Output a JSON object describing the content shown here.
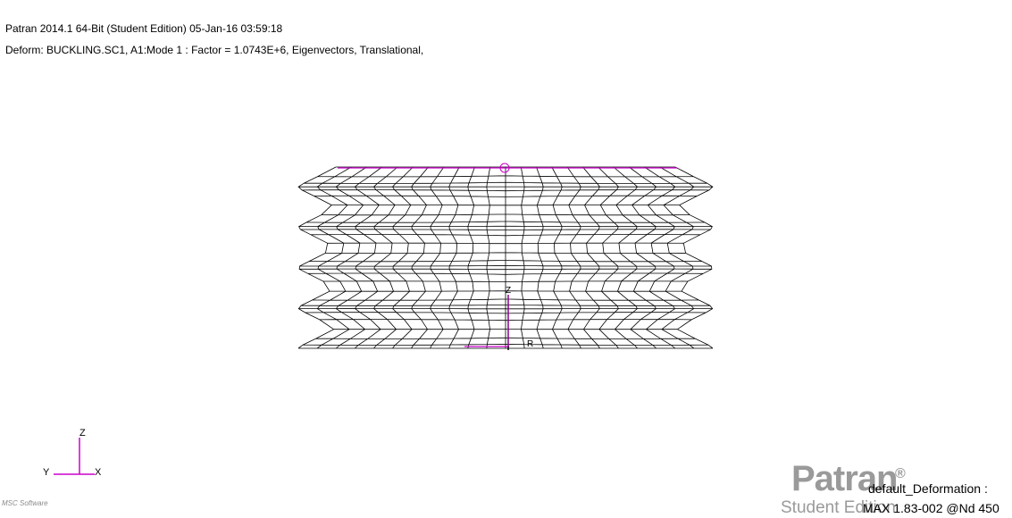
{
  "header": {
    "title": "Patran 2014.1 64-Bit  (Student Edition) 05-Jan-16 03:59:18",
    "deform": "Deform: BUCKLING.SC1, A1:Mode 1 : Factor = 1.0743E+6, Eigenvectors, Translational,"
  },
  "triad": {
    "z": "Z",
    "y": "Y",
    "x": "X"
  },
  "model_labels": {
    "z": "Z",
    "r": "R"
  },
  "logo": {
    "brand": "Patran",
    "reg": "®",
    "edition": "Student Edition",
    "msc": "MSC Software"
  },
  "result": {
    "label": "default_Deformation :",
    "max": "MAX 1.83-002 @Nd 450"
  },
  "colors": {
    "mesh": "#000000",
    "constraint": "#cc00cc",
    "logo": "#9a9a9a"
  }
}
